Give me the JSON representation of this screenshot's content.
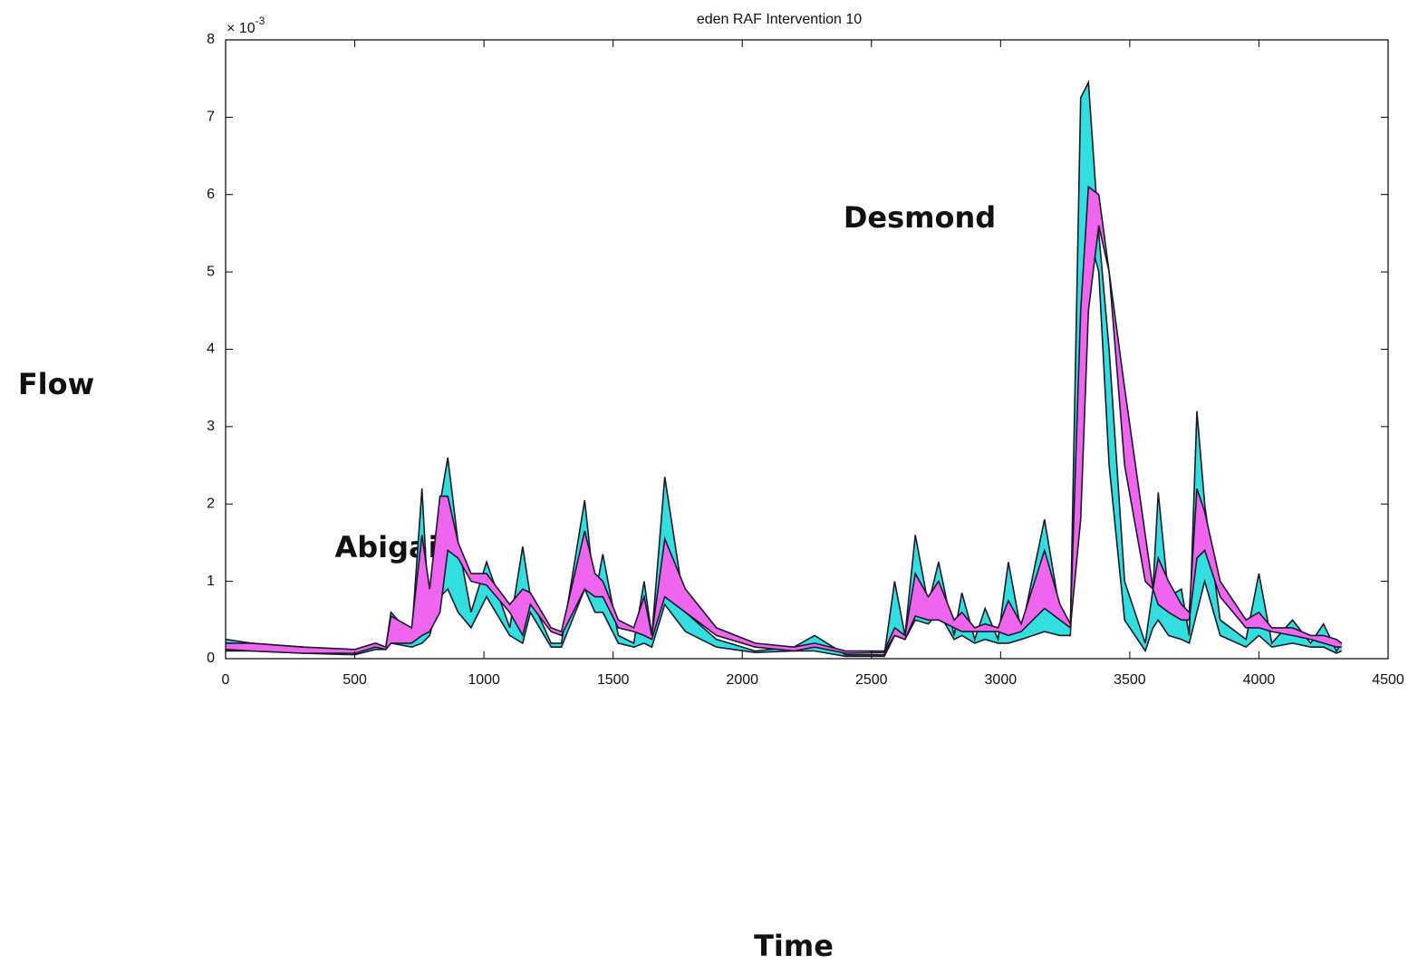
{
  "chart_data": {
    "type": "band",
    "title": "eden  RAF Intervention  10",
    "x_label": "Time",
    "y_label": "Flow",
    "y_scale_label": {
      "base": "× 10",
      "exponent": "-3"
    },
    "xlim": [
      0,
      4500
    ],
    "ylim": [
      0,
      8
    ],
    "xticks": [
      0,
      500,
      1000,
      1500,
      2000,
      2500,
      3000,
      3500,
      4000,
      4500
    ],
    "yticks": [
      0,
      1,
      2,
      3,
      4,
      5,
      6,
      7,
      8
    ],
    "x": [
      0,
      100,
      300,
      500,
      580,
      620,
      640,
      720,
      760,
      790,
      830,
      860,
      900,
      950,
      1010,
      1100,
      1150,
      1180,
      1260,
      1300,
      1390,
      1430,
      1460,
      1520,
      1580,
      1620,
      1650,
      1700,
      1780,
      1900,
      2050,
      2200,
      2280,
      2400,
      2550,
      2590,
      2630,
      2670,
      2720,
      2760,
      2820,
      2850,
      2900,
      2940,
      2990,
      3030,
      3080,
      3170,
      3230,
      3270,
      3310,
      3340,
      3380,
      3420,
      3480,
      3560,
      3590,
      3610,
      3650,
      3700,
      3730,
      3760,
      3790,
      3850,
      3950,
      4000,
      4050,
      4130,
      4200,
      4250,
      4300,
      4320
    ],
    "series": [
      {
        "color": "#33dede",
        "values": [
          0.25,
          0.2,
          0.15,
          0.1,
          0.2,
          0.15,
          0.6,
          0.3,
          2.2,
          0.4,
          2.0,
          2.6,
          1.5,
          0.6,
          1.25,
          0.4,
          1.45,
          0.8,
          0.2,
          0.2,
          2.05,
          0.8,
          1.35,
          0.3,
          0.2,
          1.0,
          0.3,
          2.35,
          0.6,
          0.25,
          0.1,
          0.15,
          0.3,
          0.05,
          0.05,
          1.0,
          0.3,
          1.6,
          0.7,
          1.25,
          0.3,
          0.85,
          0.25,
          0.65,
          0.25,
          1.25,
          0.35,
          1.8,
          0.6,
          0.4,
          7.25,
          7.45,
          5.5,
          4.0,
          1.0,
          0.2,
          0.9,
          2.15,
          0.8,
          0.9,
          0.3,
          3.2,
          2.0,
          0.5,
          0.25,
          1.1,
          0.2,
          0.5,
          0.2,
          0.45,
          0.1,
          0.2
        ],
        "lower": [
          0.1,
          0.1,
          0.07,
          0.05,
          0.12,
          0.12,
          0.2,
          0.15,
          0.2,
          0.3,
          0.8,
          0.9,
          0.6,
          0.4,
          0.8,
          0.3,
          0.2,
          0.6,
          0.15,
          0.15,
          0.9,
          0.6,
          0.6,
          0.2,
          0.15,
          0.2,
          0.15,
          0.7,
          0.35,
          0.15,
          0.08,
          0.1,
          0.1,
          0.03,
          0.03,
          0.3,
          0.25,
          0.5,
          0.45,
          0.6,
          0.25,
          0.3,
          0.2,
          0.25,
          0.2,
          0.2,
          0.25,
          0.35,
          0.3,
          0.3,
          3.0,
          5.5,
          5.0,
          2.5,
          0.5,
          0.1,
          0.4,
          0.5,
          0.3,
          0.25,
          0.2,
          0.6,
          1.0,
          0.3,
          0.15,
          0.3,
          0.15,
          0.2,
          0.15,
          0.15,
          0.07,
          0.1
        ]
      },
      {
        "color": "#ee66ee",
        "values": [
          0.2,
          0.2,
          0.15,
          0.12,
          0.2,
          0.15,
          0.55,
          0.4,
          1.6,
          0.9,
          2.1,
          2.1,
          1.5,
          1.1,
          1.1,
          0.7,
          0.9,
          0.85,
          0.4,
          0.35,
          1.65,
          1.1,
          1.0,
          0.5,
          0.4,
          0.8,
          0.3,
          1.55,
          0.9,
          0.4,
          0.2,
          0.15,
          0.2,
          0.1,
          0.1,
          0.4,
          0.3,
          1.1,
          0.8,
          1.0,
          0.5,
          0.6,
          0.4,
          0.45,
          0.4,
          0.75,
          0.45,
          1.4,
          0.7,
          0.45,
          4.5,
          6.1,
          6.0,
          5.0,
          2.5,
          1.0,
          0.9,
          1.3,
          1.0,
          0.7,
          0.6,
          2.2,
          1.9,
          1.0,
          0.5,
          0.6,
          0.4,
          0.4,
          0.3,
          0.3,
          0.25,
          0.2
        ],
        "lower": [
          0.12,
          0.1,
          0.07,
          0.07,
          0.15,
          0.12,
          0.2,
          0.2,
          0.3,
          0.35,
          0.6,
          1.4,
          1.3,
          1.0,
          0.95,
          0.6,
          0.3,
          0.7,
          0.35,
          0.3,
          0.9,
          0.8,
          0.8,
          0.4,
          0.35,
          0.3,
          0.25,
          0.8,
          0.6,
          0.3,
          0.15,
          0.1,
          0.15,
          0.07,
          0.08,
          0.3,
          0.25,
          0.55,
          0.5,
          0.5,
          0.4,
          0.35,
          0.35,
          0.35,
          0.35,
          0.3,
          0.35,
          0.65,
          0.5,
          0.4,
          1.8,
          4.5,
          5.6,
          5.0,
          3.5,
          1.6,
          0.9,
          0.7,
          0.6,
          0.5,
          0.5,
          1.3,
          1.4,
          0.8,
          0.4,
          0.4,
          0.35,
          0.3,
          0.25,
          0.2,
          0.15,
          0.15
        ]
      }
    ],
    "annotations": [
      {
        "text": "Abigail",
        "color": "#c00000"
      },
      {
        "text": "Desmond",
        "color": "#1aa7e8"
      }
    ]
  }
}
